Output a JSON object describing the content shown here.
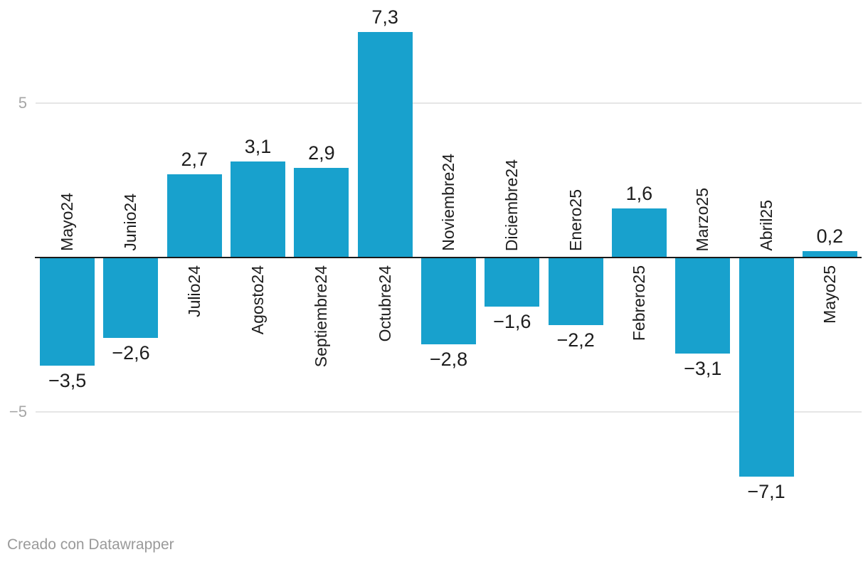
{
  "chart_data": {
    "type": "bar",
    "categories": [
      "Mayo24",
      "Junio24",
      "Julio24",
      "Agosto24",
      "Septiembre24",
      "Octubre24",
      "Noviembre24",
      "Diciembre24",
      "Enero25",
      "Febrero25",
      "Marzo25",
      "Abril25",
      "Mayo25"
    ],
    "values": [
      -3.5,
      -2.6,
      2.7,
      3.1,
      2.9,
      7.3,
      -2.8,
      -1.6,
      -2.2,
      1.6,
      -3.1,
      -7.1,
      0.2
    ],
    "value_labels": [
      "−3,5",
      "−2,6",
      "2,7",
      "3,1",
      "2,9",
      "7,3",
      "−2,8",
      "−1,6",
      "−2,2",
      "1,6",
      "−3,1",
      "−7,1",
      "0,2"
    ],
    "title": "",
    "xlabel": "",
    "ylabel": "",
    "ylim": [
      -8.3,
      8.3
    ],
    "y_ticks": [
      {
        "value": 5,
        "label": "5"
      },
      {
        "value": -5,
        "label": "−5"
      }
    ],
    "grid": "horizontal-only",
    "legend": "none"
  },
  "footer": {
    "text": "Creado con Datawrapper"
  },
  "colors": {
    "bar": "#18a1cd",
    "zero_line": "#1a1a1a",
    "gridline": "#e6e6e6",
    "tick_label": "#a6a6a6",
    "value_label": "#1d1d1d",
    "category_label": "#1d1d1d",
    "footer_text": "#9a9a9a",
    "background": "#ffffff"
  }
}
